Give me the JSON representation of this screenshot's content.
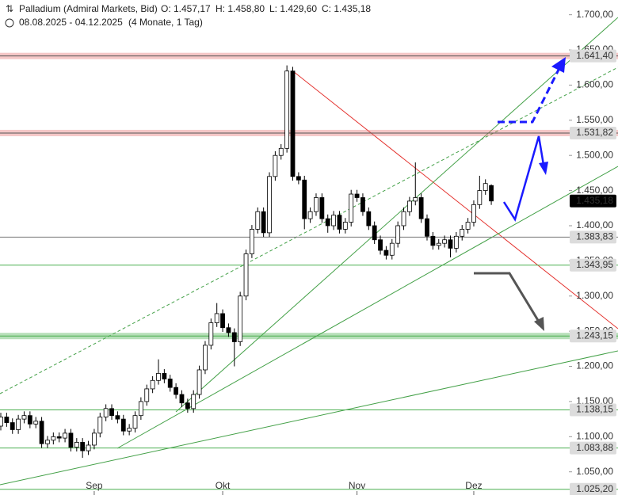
{
  "header": {
    "symbol": "Palladium (Admiral Markets, Bid)",
    "open": "O: 1.457,17",
    "high": "H: 1.458,80",
    "low": "L: 1.429,60",
    "close": "C: 1.435,18",
    "range": "08.08.2025 - 04.12.2025",
    "span": "(4 Monate, 1 Tag)"
  },
  "chart_data": {
    "type": "candlestick",
    "categories": [
      null,
      null,
      null,
      null,
      null,
      null,
      null,
      null,
      null,
      null,
      null,
      null,
      null,
      null,
      null,
      null,
      "Sep",
      null,
      null,
      null,
      null,
      null,
      null,
      null,
      null,
      null,
      null,
      null,
      null,
      null,
      null,
      null,
      null,
      null,
      null,
      null,
      null,
      null,
      "Okt",
      null,
      null,
      null,
      null,
      null,
      null,
      null,
      null,
      null,
      null,
      null,
      null,
      null,
      null,
      null,
      null,
      null,
      null,
      null,
      null,
      null,
      null,
      "Nov",
      null,
      null,
      null,
      null,
      null,
      null,
      null,
      null,
      null,
      null,
      null,
      null,
      null,
      null,
      null,
      null,
      null,
      null,
      null,
      "Dez",
      null,
      null,
      null
    ],
    "open": [
      1115,
      1128,
      1120,
      1110,
      1125,
      1130,
      1118,
      1122,
      1090,
      1095,
      1100,
      1098,
      1105,
      1085,
      1092,
      1080,
      1088,
      1105,
      1128,
      1140,
      1130,
      1125,
      1108,
      1112,
      1130,
      1150,
      1168,
      1180,
      1190,
      1182,
      1170,
      1160,
      1148,
      1140,
      1160,
      1195,
      1230,
      1262,
      1275,
      1255,
      1248,
      1235,
      1300,
      1360,
      1395,
      1420,
      1390,
      1470,
      1500,
      1510,
      1620,
      1470,
      1465,
      1410,
      1420,
      1440,
      1410,
      1400,
      1415,
      1395,
      1405,
      1445,
      1440,
      1420,
      1400,
      1380,
      1365,
      1358,
      1375,
      1400,
      1420,
      1435,
      1440,
      1410,
      1385,
      1372,
      1375,
      1380,
      1368,
      1385,
      1395,
      1405,
      1430,
      1450,
      1457.17
    ],
    "high": [
      1134,
      1134,
      1126,
      1131,
      1136,
      1136,
      1128,
      1128,
      1101,
      1106,
      1106,
      1111,
      1111,
      1098,
      1098,
      1094,
      1111,
      1134,
      1146,
      1146,
      1136,
      1131,
      1118,
      1136,
      1156,
      1174,
      1186,
      1210,
      1196,
      1188,
      1176,
      1166,
      1154,
      1166,
      1201,
      1236,
      1268,
      1290,
      1281,
      1261,
      1254,
      1306,
      1366,
      1401,
      1426,
      1426,
      1476,
      1506,
      1516,
      1628,
      1626,
      1476,
      1471,
      1426,
      1446,
      1446,
      1416,
      1421,
      1421,
      1411,
      1451,
      1451,
      1446,
      1426,
      1406,
      1386,
      1371,
      1381,
      1406,
      1426,
      1441,
      1490,
      1446,
      1416,
      1391,
      1381,
      1386,
      1386,
      1391,
      1401,
      1411,
      1436,
      1471,
      1466,
      1458.8
    ],
    "low": [
      1109,
      1114,
      1104,
      1104,
      1119,
      1112,
      1112,
      1084,
      1084,
      1089,
      1092,
      1092,
      1079,
      1079,
      1070,
      1074,
      1082,
      1099,
      1122,
      1124,
      1119,
      1102,
      1102,
      1106,
      1124,
      1144,
      1162,
      1174,
      1176,
      1164,
      1154,
      1142,
      1134,
      1134,
      1154,
      1189,
      1224,
      1256,
      1249,
      1242,
      1200,
      1229,
      1294,
      1354,
      1389,
      1384,
      1384,
      1464,
      1494,
      1504,
      1464,
      1459,
      1395,
      1404,
      1414,
      1404,
      1390,
      1394,
      1389,
      1389,
      1399,
      1434,
      1414,
      1394,
      1374,
      1359,
      1352,
      1352,
      1369,
      1394,
      1414,
      1429,
      1404,
      1379,
      1366,
      1366,
      1369,
      1355,
      1362,
      1379,
      1389,
      1399,
      1424,
      1444,
      1429.6
    ],
    "close": [
      1128,
      1120,
      1110,
      1125,
      1130,
      1118,
      1122,
      1090,
      1095,
      1100,
      1098,
      1105,
      1085,
      1092,
      1080,
      1088,
      1105,
      1128,
      1140,
      1130,
      1125,
      1108,
      1112,
      1130,
      1150,
      1168,
      1180,
      1190,
      1182,
      1170,
      1160,
      1148,
      1140,
      1160,
      1195,
      1230,
      1262,
      1275,
      1255,
      1248,
      1235,
      1300,
      1360,
      1395,
      1420,
      1390,
      1470,
      1500,
      1510,
      1620,
      1470,
      1465,
      1410,
      1420,
      1440,
      1410,
      1400,
      1415,
      1395,
      1405,
      1445,
      1440,
      1420,
      1400,
      1380,
      1365,
      1358,
      1375,
      1400,
      1420,
      1435,
      1440,
      1410,
      1385,
      1372,
      1375,
      1380,
      1368,
      1385,
      1395,
      1405,
      1430,
      1450,
      1460,
      1435.18
    ],
    "up_color": "#ffffff",
    "down_color": "#000000",
    "ylim": [
      1017,
      1721
    ],
    "yticks": [
      {
        "value": 1050,
        "label": "1.050,00"
      },
      {
        "value": 1100,
        "label": "1.100,00"
      },
      {
        "value": 1150,
        "label": "1.150,00"
      },
      {
        "value": 1200,
        "label": "1.200,00"
      },
      {
        "value": 1250,
        "label": "1.250,00"
      },
      {
        "value": 1300,
        "label": "1.300,00"
      },
      {
        "value": 1350,
        "label": "1.350,00"
      },
      {
        "value": 1400,
        "label": "1.400,00"
      },
      {
        "value": 1450,
        "label": "1.450,00"
      },
      {
        "value": 1500,
        "label": "1.500,00"
      },
      {
        "value": 1550,
        "label": "1.550,00"
      },
      {
        "value": 1600,
        "label": "1.600,00"
      },
      {
        "value": 1650,
        "label": "1.650,00"
      },
      {
        "value": 1700,
        "label": "1.700,00"
      }
    ],
    "levels": [
      {
        "value": 1641.4,
        "label": "1.641,40",
        "color": "#e57373",
        "band": true
      },
      {
        "value": 1531.82,
        "label": "1.531,82",
        "color": "#e57373",
        "band": true
      },
      {
        "value": 1383.83,
        "label": "1.383,83",
        "color": "#777777",
        "band": false
      },
      {
        "value": 1343.95,
        "label": "1.343,95",
        "color": "#4caf50",
        "band": false
      },
      {
        "value": 1243.15,
        "label": "1.243,15",
        "color": "#4caf50",
        "band": true
      },
      {
        "value": 1138.15,
        "label": "1.138,15",
        "color": "#4caf50",
        "band": false
      },
      {
        "value": 1083.88,
        "label": "1.083,88",
        "color": "#4caf50",
        "band": false
      },
      {
        "value": 1025.2,
        "label": "1.025,20",
        "color": "#4caf50",
        "band": false
      }
    ],
    "last_price": {
      "value": 1435.18,
      "label": "1.435,18"
    }
  }
}
